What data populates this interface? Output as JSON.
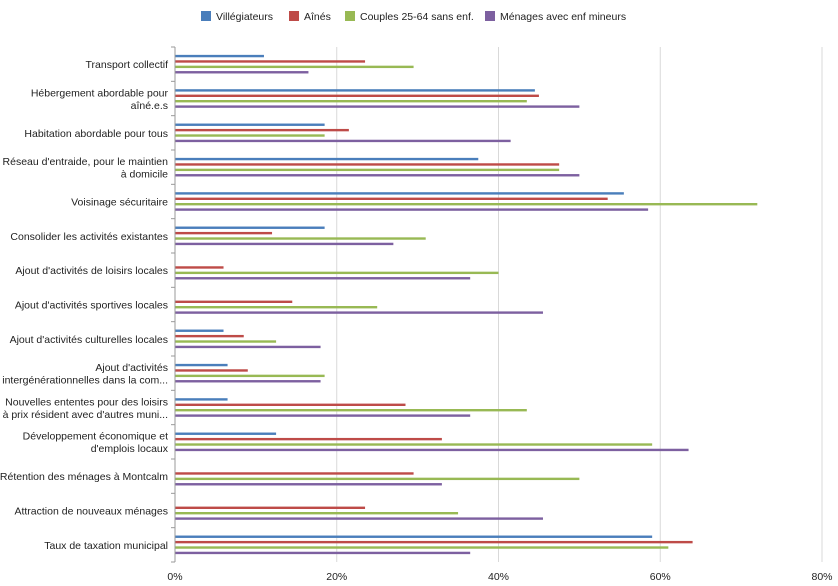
{
  "chart_data": {
    "type": "bar",
    "orientation": "horizontal",
    "title": "",
    "xlabel": "",
    "ylabel": "",
    "xlim": [
      0,
      80
    ],
    "x_ticks": [
      "0%",
      "20%",
      "40%",
      "60%",
      "80%"
    ],
    "grid": "vertical",
    "legend_position": "top",
    "categories": [
      [
        "Transport collectif"
      ],
      [
        "Hébergement abordable pour",
        "aîné.e.s"
      ],
      [
        "Habitation abordable pour tous"
      ],
      [
        "Réseau d'entraide, pour le maintien",
        "à domicile"
      ],
      [
        "Voisinage sécuritaire"
      ],
      [
        "Consolider les activités existantes"
      ],
      [
        "Ajout d'activités de loisirs locales"
      ],
      [
        "Ajout d'activités sportives locales"
      ],
      [
        "Ajout d'activités culturelles locales"
      ],
      [
        "Ajout d'activités",
        "intergénérationnelles dans la com..."
      ],
      [
        "Nouvelles ententes pour des loisirs",
        "à prix résident avec d'autres muni..."
      ],
      [
        "Développement économique et",
        "d'emplois locaux"
      ],
      [
        "Rétention des ménages à Montcalm"
      ],
      [
        "Attraction de nouveaux ménages"
      ],
      [
        "Taux de taxation municipal"
      ]
    ],
    "series": [
      {
        "name": "Villégiateurs",
        "color": "#4a7ebb",
        "values": [
          11,
          44.5,
          18.5,
          37.5,
          55.5,
          18.5,
          0,
          0,
          6,
          6.5,
          6.5,
          12.5,
          0,
          0,
          59
        ]
      },
      {
        "name": "Aînés",
        "color": "#be4b48",
        "values": [
          23.5,
          45,
          21.5,
          47.5,
          53.5,
          12,
          6,
          14.5,
          8.5,
          9,
          28.5,
          33,
          29.5,
          23.5,
          64
        ]
      },
      {
        "name": "Couples 25-64 sans enf.",
        "color": "#98b954",
        "values": [
          29.5,
          43.5,
          18.5,
          47.5,
          72,
          31,
          40,
          25,
          12.5,
          18.5,
          43.5,
          59,
          50,
          35,
          61
        ]
      },
      {
        "name": "Ménages avec enf mineurs",
        "color": "#7d60a0",
        "values": [
          16.5,
          50,
          41.5,
          50,
          58.5,
          27,
          36.5,
          45.5,
          18,
          18,
          36.5,
          63.5,
          33,
          45.5,
          36.5
        ]
      }
    ]
  }
}
